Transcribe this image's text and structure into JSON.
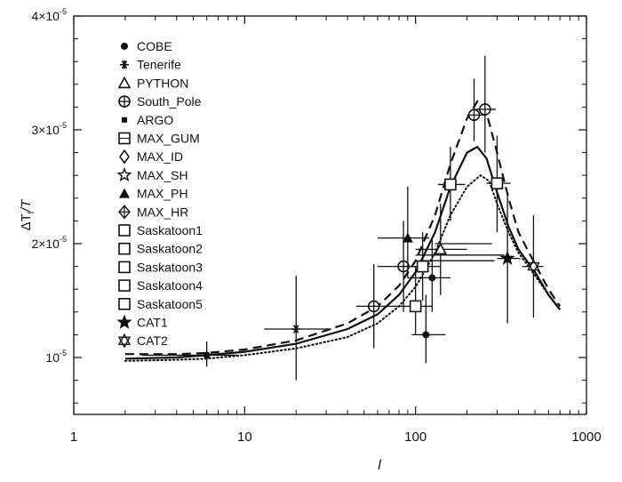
{
  "chart_data": {
    "type": "scatter",
    "title": "",
    "xlabel": "l",
    "ylabel_main": "ΔT",
    "ylabel_sub": "l",
    "ylabel_tail": "/T",
    "xscale": "log",
    "xlim": [
      1,
      1000
    ],
    "ylim": [
      0.5,
      4.0
    ],
    "y_unit_note": "values in units of 10^-5",
    "x_ticks": [
      1,
      10,
      100,
      1000
    ],
    "x_tick_labels": [
      "1",
      "10",
      "100",
      "1000"
    ],
    "y_ticks": [
      1,
      2,
      3,
      4
    ],
    "y_tick_base": "10",
    "y_tick_exp": "-5",
    "y_tick_mantissa": [
      "1",
      "2×",
      "3×",
      "4×"
    ],
    "legend_position": "upper-left inside",
    "legend": [
      {
        "label": "COBE",
        "symbol": "dot"
      },
      {
        "label": "Tenerife",
        "symbol": "asterisk"
      },
      {
        "label": "PYTHON",
        "symbol": "triangle-open"
      },
      {
        "label": "South_Pole",
        "symbol": "circle-plus"
      },
      {
        "label": "ARGO",
        "symbol": "small-square"
      },
      {
        "label": "MAX_GUM",
        "symbol": "square-notched"
      },
      {
        "label": "MAX_ID",
        "symbol": "diamond-open"
      },
      {
        "label": "MAX_SH",
        "symbol": "star-open"
      },
      {
        "label": "MAX_PH",
        "symbol": "triangle-filled"
      },
      {
        "label": "MAX_HR",
        "symbol": "cross-diamond"
      },
      {
        "label": "Saskatoon1",
        "symbol": "square-open"
      },
      {
        "label": "Saskatoon2",
        "symbol": "square-open"
      },
      {
        "label": "Saskatoon3",
        "symbol": "square-open"
      },
      {
        "label": "Saskatoon4",
        "symbol": "square-open"
      },
      {
        "label": "Saskatoon5",
        "symbol": "square-open"
      },
      {
        "label": "CAT1",
        "symbol": "star-filled"
      },
      {
        "label": "CAT2",
        "symbol": "star-of-david"
      }
    ],
    "points": [
      {
        "x": 6,
        "y": 1.02,
        "xerr": [
          2.5,
          9
        ],
        "yerr": [
          0.92,
          1.14
        ],
        "marker": "dot"
      },
      {
        "x": 20,
        "y": 1.25,
        "xerr": [
          13,
          32
        ],
        "yerr": [
          0.8,
          1.72
        ],
        "marker": "asterisk"
      },
      {
        "x": 57,
        "y": 1.45,
        "xerr": [
          45,
          85
        ],
        "yerr": [
          1.08,
          1.82
        ],
        "marker": "circle-plus"
      },
      {
        "x": 85,
        "y": 1.8,
        "xerr": [
          60,
          110
        ],
        "yerr": [
          1.4,
          2.2
        ],
        "marker": "circle-plus"
      },
      {
        "x": 90,
        "y": 2.05,
        "xerr": [
          60,
          120
        ],
        "yerr": [
          1.7,
          2.5
        ],
        "marker": "triangle-filled"
      },
      {
        "x": 100,
        "y": 1.45,
        "xerr": [
          80,
          125
        ],
        "yerr": [
          1.2,
          1.8
        ],
        "marker": "square-open"
      },
      {
        "x": 110,
        "y": 1.8,
        "xerr": [
          85,
          140
        ],
        "yerr": [
          1.5,
          2.1
        ],
        "marker": "square-open"
      },
      {
        "x": 115,
        "y": 1.2,
        "xerr": [
          95,
          150
        ],
        "yerr": [
          0.95,
          1.55
        ],
        "marker": "dot"
      },
      {
        "x": 125,
        "y": 1.7,
        "xerr": [
          90,
          160
        ],
        "yerr": [
          1.4,
          2.05
        ],
        "marker": "dot"
      },
      {
        "x": 140,
        "y": 1.95,
        "xerr": [
          100,
          200
        ],
        "yerr": [
          1.55,
          2.35
        ],
        "marker": "triangle-open"
      },
      {
        "x": 160,
        "y": 2.52,
        "xerr": [
          135,
          195
        ],
        "yerr": [
          2.2,
          2.85
        ],
        "marker": "square-open"
      },
      {
        "x": 220,
        "y": 3.13,
        "xerr": [
          200,
          260
        ],
        "yerr": [
          2.9,
          3.45
        ],
        "marker": "circle-plus"
      },
      {
        "x": 255,
        "y": 3.18,
        "xerr": [
          225,
          295
        ],
        "yerr": [
          2.8,
          3.65
        ],
        "marker": "circle-plus"
      },
      {
        "x": 300,
        "y": 2.53,
        "xerr": [
          260,
          360
        ],
        "yerr": [
          2.1,
          2.95
        ],
        "marker": "square-open"
      },
      {
        "x": 345,
        "y": 1.87,
        "xerr": [
          300,
          410
        ],
        "yerr": [
          1.3,
          2.45
        ],
        "marker": "star-filled"
      },
      {
        "x": 490,
        "y": 1.8,
        "xerr": [
          420,
          560
        ],
        "yerr": [
          1.35,
          2.25
        ],
        "marker": "star-of-david"
      }
    ],
    "extra_hbars": [
      {
        "y": 1.9,
        "x_from": 100,
        "x_to": 330
      },
      {
        "y": 1.85,
        "x_from": 105,
        "x_to": 290
      },
      {
        "y": 2.0,
        "x_from": 130,
        "x_to": 280
      }
    ],
    "series": [
      {
        "name": "model-solid",
        "style": "solid",
        "x": [
          2,
          4,
          6,
          10,
          20,
          40,
          60,
          80,
          100,
          130,
          160,
          200,
          230,
          260,
          300,
          350,
          400,
          500,
          600,
          700
        ],
        "values": [
          0.99,
          1.0,
          1.02,
          1.05,
          1.12,
          1.25,
          1.38,
          1.55,
          1.75,
          2.1,
          2.5,
          2.8,
          2.85,
          2.75,
          2.45,
          2.15,
          1.95,
          1.75,
          1.55,
          1.42
        ]
      },
      {
        "name": "model-dashed",
        "style": "dashed",
        "x": [
          2,
          4,
          6,
          10,
          20,
          40,
          60,
          80,
          100,
          130,
          160,
          200,
          230,
          260,
          300,
          350,
          400,
          500,
          600,
          700
        ],
        "values": [
          1.03,
          1.03,
          1.04,
          1.07,
          1.15,
          1.3,
          1.45,
          1.63,
          1.85,
          2.25,
          2.7,
          3.1,
          3.25,
          3.15,
          2.8,
          2.4,
          2.1,
          1.82,
          1.6,
          1.45
        ]
      },
      {
        "name": "model-dotted",
        "style": "dotted",
        "x": [
          2,
          4,
          6,
          10,
          20,
          40,
          60,
          80,
          100,
          130,
          160,
          200,
          240,
          270,
          300,
          350,
          400,
          500,
          600,
          700
        ],
        "values": [
          0.97,
          0.98,
          0.99,
          1.02,
          1.08,
          1.18,
          1.3,
          1.45,
          1.62,
          1.92,
          2.25,
          2.5,
          2.6,
          2.55,
          2.35,
          2.1,
          1.92,
          1.72,
          1.55,
          1.42
        ]
      }
    ]
  }
}
